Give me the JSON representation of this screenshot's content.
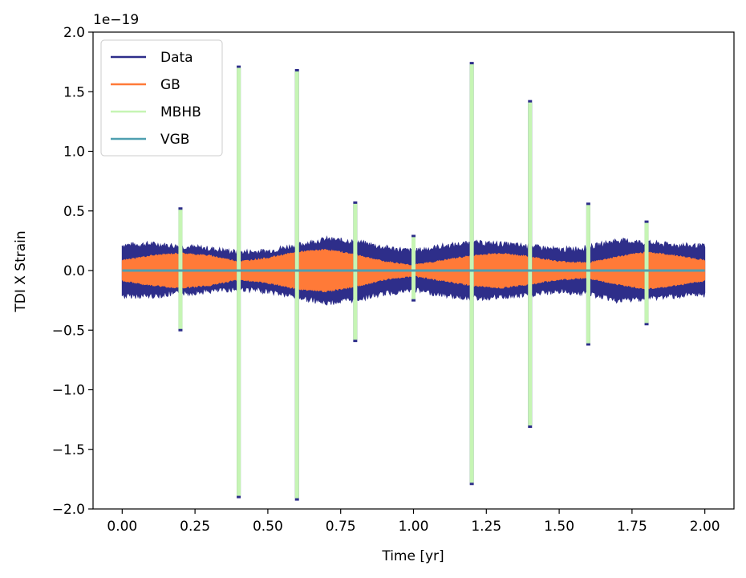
{
  "chart_data": {
    "type": "line",
    "title": "",
    "xlabel": "Time [yr]",
    "ylabel": "TDI X Strain",
    "offset_text": "1e−19",
    "xlim": [
      -0.1,
      2.1
    ],
    "ylim": [
      -2.0,
      2.0
    ],
    "x_ticks": [
      0.0,
      0.25,
      0.5,
      0.75,
      1.0,
      1.25,
      1.5,
      1.75,
      2.0
    ],
    "x_tick_labels": [
      "0.00",
      "0.25",
      "0.50",
      "0.75",
      "1.00",
      "1.25",
      "1.50",
      "1.75",
      "2.00"
    ],
    "y_ticks": [
      -2.0,
      -1.5,
      -1.0,
      -0.5,
      0.0,
      0.5,
      1.0,
      1.5,
      2.0
    ],
    "y_tick_labels": [
      "−2.0",
      "−1.5",
      "−1.0",
      "−0.5",
      "0.0",
      "0.5",
      "1.0",
      "1.5",
      "2.0"
    ],
    "grid": false,
    "legend_position": "top-left",
    "series": [
      {
        "name": "Data",
        "color": "#2e2e8a",
        "kind": "band",
        "x": [
          0.0,
          0.1,
          0.2,
          0.3,
          0.4,
          0.5,
          0.6,
          0.7,
          0.8,
          0.9,
          1.0,
          1.1,
          1.2,
          1.3,
          1.4,
          1.5,
          1.6,
          1.7,
          1.8,
          1.9,
          2.0
        ],
        "upper": [
          0.2,
          0.21,
          0.19,
          0.17,
          0.14,
          0.15,
          0.2,
          0.25,
          0.23,
          0.18,
          0.15,
          0.19,
          0.22,
          0.21,
          0.19,
          0.16,
          0.18,
          0.24,
          0.22,
          0.2,
          0.19
        ],
        "lower": [
          -0.2,
          -0.2,
          -0.18,
          -0.16,
          -0.14,
          -0.16,
          -0.21,
          -0.26,
          -0.23,
          -0.18,
          -0.15,
          -0.19,
          -0.22,
          -0.21,
          -0.19,
          -0.16,
          -0.18,
          -0.24,
          -0.22,
          -0.2,
          -0.19
        ]
      },
      {
        "name": "GB",
        "color": "#ff7a38",
        "kind": "band",
        "x": [
          0.0,
          0.1,
          0.2,
          0.3,
          0.4,
          0.5,
          0.6,
          0.7,
          0.8,
          0.9,
          1.0,
          1.1,
          1.2,
          1.3,
          1.4,
          1.5,
          1.6,
          1.7,
          1.8,
          1.9,
          2.0
        ],
        "upper": [
          0.08,
          0.12,
          0.14,
          0.12,
          0.07,
          0.1,
          0.15,
          0.17,
          0.13,
          0.07,
          0.04,
          0.08,
          0.12,
          0.14,
          0.11,
          0.07,
          0.06,
          0.11,
          0.15,
          0.12,
          0.08
        ],
        "lower": [
          -0.08,
          -0.12,
          -0.14,
          -0.12,
          -0.07,
          -0.1,
          -0.15,
          -0.17,
          -0.13,
          -0.07,
          -0.04,
          -0.08,
          -0.12,
          -0.14,
          -0.11,
          -0.07,
          -0.06,
          -0.11,
          -0.15,
          -0.12,
          -0.08
        ]
      },
      {
        "name": "MBHB",
        "color": "#c6f5b4",
        "kind": "spikes",
        "x": [
          0.2,
          0.4,
          0.6,
          0.8,
          1.0,
          1.2,
          1.4,
          1.6,
          1.8
        ],
        "max": [
          0.51,
          1.7,
          1.67,
          0.56,
          0.28,
          1.73,
          1.41,
          0.55,
          0.4
        ],
        "min": [
          -0.49,
          -1.89,
          -1.91,
          -0.58,
          -0.24,
          -1.78,
          -1.3,
          -0.61,
          -0.44
        ]
      },
      {
        "name": "VGB",
        "color": "#4f9fb0",
        "kind": "line",
        "x": [
          0.0,
          2.0
        ],
        "values": [
          0.0,
          0.0
        ]
      }
    ]
  }
}
